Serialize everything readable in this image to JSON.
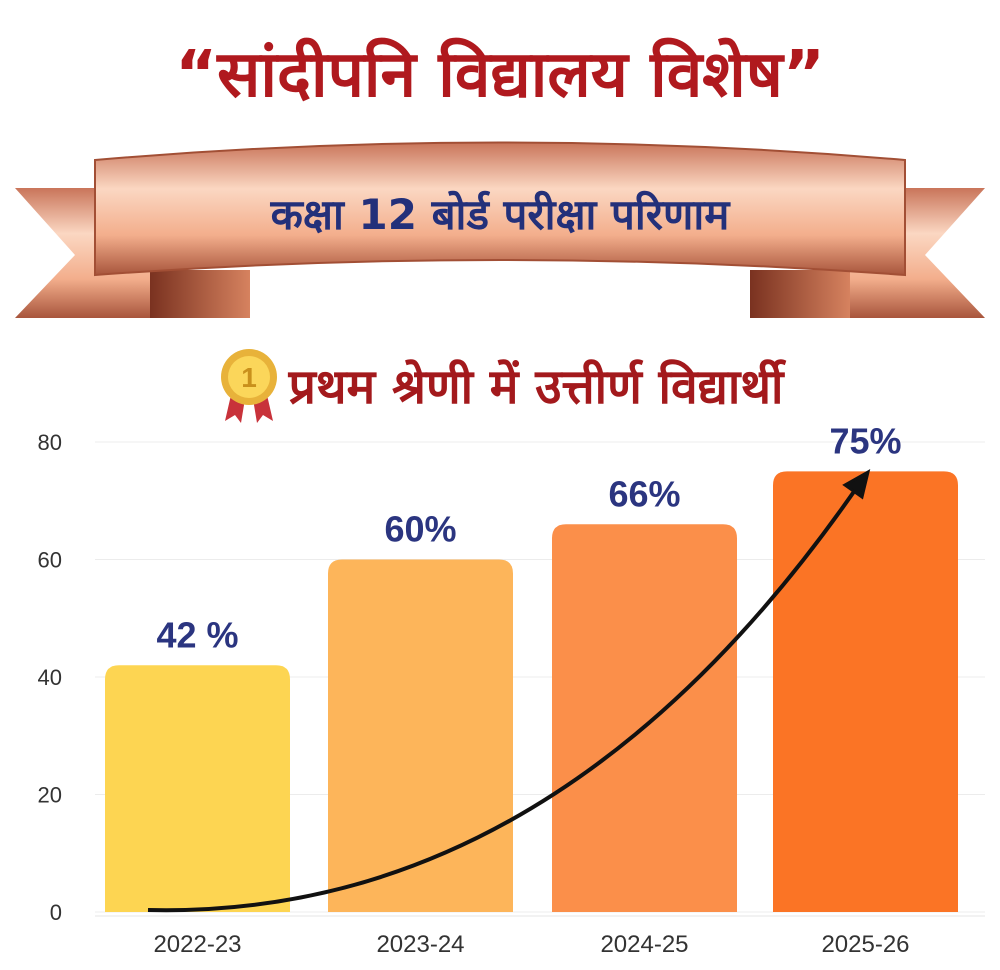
{
  "header": {
    "title": "“सांदीपनि विद्यालय विशेष”",
    "ribbon_text": "कक्षा 12 बोर्ड परीक्षा परिणाम",
    "subtitle": "प्रथम श्रेणी में उत्तीर्ण विद्यार्थी",
    "medal_icon": "gold-medal-1-icon"
  },
  "chart_data": {
    "type": "bar",
    "categories": [
      "2022-23",
      "2023-24",
      "2024-25",
      "2025-26"
    ],
    "values": [
      42,
      60,
      66,
      75
    ],
    "data_labels": [
      "42 %",
      "60%",
      "66%",
      "75%"
    ],
    "ylim": [
      0,
      80
    ],
    "yticks": [
      0,
      20,
      40,
      60,
      80
    ],
    "grid": true,
    "trend_arrow": true,
    "colors": [
      "#fdd552",
      "#fdb55a",
      "#fb8f4a",
      "#fb7425"
    ],
    "label_color": "#2b3580"
  }
}
